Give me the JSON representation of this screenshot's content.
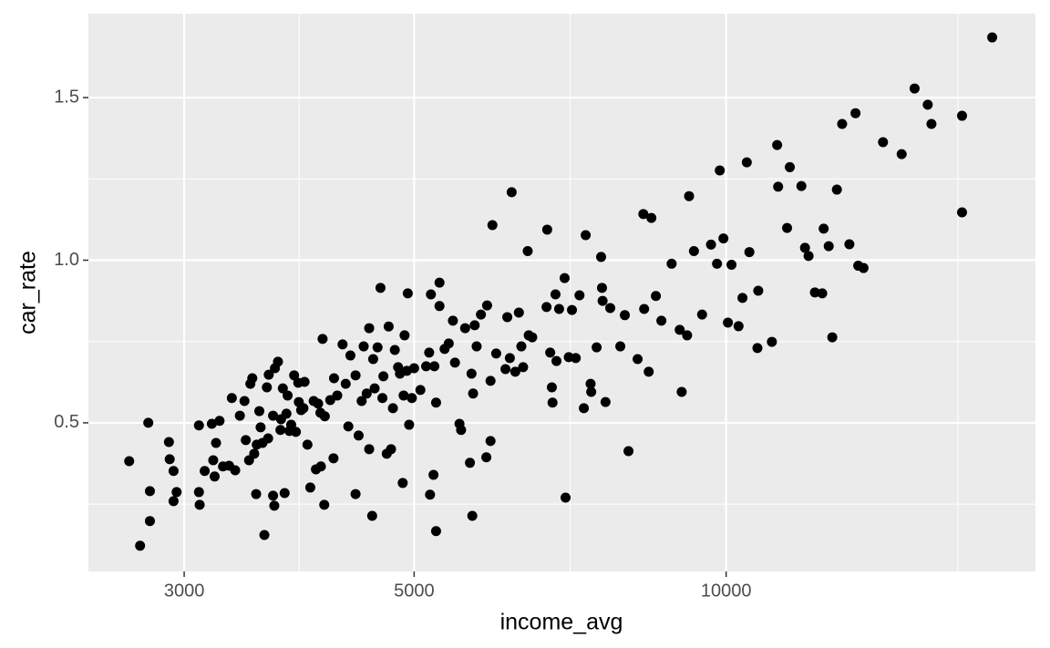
{
  "chart_data": {
    "type": "scatter",
    "x_label": "income_avg",
    "y_label": "car_rate",
    "x_log": true,
    "grid": true,
    "color": "#000000",
    "xlim": [
      2425,
      19880
    ],
    "xticks": [
      3000,
      5000,
      10000
    ],
    "xminor": [
      3873,
      7071,
      16733
    ],
    "ylim": [
      0.043,
      1.758
    ],
    "yticks": [
      0.5,
      {
        "value": 1,
        "label": "1.0"
      },
      1.5
    ],
    "yminor": [
      0.25,
      0.75,
      1.25
    ],
    "x": [
      2655,
      2720,
      2770,
      2780,
      2780,
      2900,
      2905,
      2930,
      2930,
      2950,
      3100,
      3100,
      3105,
      3140,
      3190,
      3200,
      3210,
      3220,
      3245,
      3270,
      3315,
      3335,
      3360,
      3395,
      3430,
      3440,
      3465,
      3475,
      3490,
      3505,
      3520,
      3525,
      3545,
      3555,
      3570,
      3585,
      3605,
      3615,
      3620,
      3655,
      3655,
      3665,
      3670,
      3695,
      3715,
      3720,
      3735,
      3750,
      3765,
      3775,
      3790,
      3805,
      3830,
      3845,
      3865,
      3870,
      3890,
      3910,
      3920,
      3945,
      3970,
      4000,
      4020,
      4040,
      4060,
      4065,
      4080,
      4095,
      4100,
      4150,
      4180,
      4185,
      4215,
      4265,
      4295,
      4320,
      4340,
      4390,
      4390,
      4420,
      4450,
      4470,
      4500,
      4525,
      4525,
      4555,
      4565,
      4580,
      4610,
      4640,
      4660,
      4670,
      4705,
      4725,
      4750,
      4770,
      4790,
      4825,
      4845,
      4875,
      4885,
      4895,
      4920,
      4930,
      4945,
      4975,
      5000,
      5070,
      5180,
      5220,
      5250,
      5135,
      5170,
      5190,
      5230,
      5250,
      5290,
      5290,
      5350,
      5400,
      5450,
      5475,
      5530,
      5550,
      5600,
      5660,
      5680,
      5690,
      5700,
      5720,
      5745,
      5800,
      5870,
      5880,
      5925,
      5925,
      5950,
      6000,
      6125,
      6150,
      6185,
      6210,
      6260,
      6310,
      6345,
      6370,
      6435,
      6450,
      6500,
      6710,
      6720,
      6765,
      6790,
      6800,
      6845,
      6860,
      6900,
      6985,
      7000,
      7050,
      7100,
      7160,
      7220,
      7290,
      7320,
      7400,
      7410,
      7500,
      7575,
      7590,
      7600,
      7650,
      7730,
      7905,
      7985,
      8050,
      8215,
      8320,
      8335,
      8420,
      8470,
      8555,
      8660,
      8860,
      9020,
      9060,
      9170,
      9210,
      9310,
      9480,
      9670,
      9800,
      9860,
      9940,
      10040,
      10120,
      10280,
      10370,
      10470,
      10530,
      10720,
      10740,
      11070,
      11200,
      11225,
      11450,
      11520,
      11820,
      11915,
      12010,
      12180,
      12380,
      12420,
      12560,
      12660,
      12790,
      12940,
      13150,
      13330,
      13410,
      13570,
      14170,
      14770,
      15200,
      15650,
      15780,
      16890,
      16890,
      18060
    ],
    "values": [
      0.382,
      0.122,
      0.5,
      0.29,
      0.198,
      0.441,
      0.388,
      0.352,
      0.259,
      0.287,
      0.492,
      0.287,
      0.248,
      0.352,
      0.497,
      0.385,
      0.335,
      0.438,
      0.506,
      0.366,
      0.368,
      0.576,
      0.354,
      0.522,
      0.567,
      0.447,
      0.385,
      0.62,
      0.637,
      0.405,
      0.281,
      0.433,
      0.536,
      0.486,
      0.438,
      0.155,
      0.609,
      0.452,
      0.648,
      0.522,
      0.276,
      0.245,
      0.668,
      0.688,
      0.478,
      0.511,
      0.606,
      0.284,
      0.528,
      0.584,
      0.475,
      0.494,
      0.646,
      0.472,
      0.623,
      0.564,
      0.539,
      0.545,
      0.626,
      0.433,
      0.301,
      0.567,
      0.357,
      0.559,
      0.531,
      0.366,
      0.758,
      0.248,
      0.52,
      0.57,
      0.391,
      0.637,
      0.584,
      0.741,
      0.62,
      0.489,
      0.707,
      0.281,
      0.646,
      0.461,
      0.567,
      0.735,
      0.59,
      0.419,
      0.791,
      0.214,
      0.696,
      0.606,
      0.732,
      0.915,
      0.576,
      0.643,
      0.405,
      0.796,
      0.419,
      0.545,
      0.724,
      0.671,
      0.651,
      0.315,
      0.584,
      0.769,
      0.66,
      0.898,
      0.494,
      0.576,
      0.668,
      0.601,
      0.279,
      0.34,
      0.167,
      0.674,
      0.716,
      0.895,
      0.674,
      0.562,
      0.931,
      0.859,
      0.727,
      0.744,
      0.814,
      0.685,
      0.497,
      0.478,
      0.791,
      0.377,
      0.651,
      0.214,
      0.59,
      0.8,
      0.735,
      0.833,
      0.394,
      0.861,
      0.444,
      0.629,
      1.108,
      0.713,
      0.665,
      0.825,
      0.699,
      1.209,
      0.657,
      0.839,
      0.735,
      0.671,
      1.028,
      0.769,
      0.763,
      0.856,
      1.094,
      0.716,
      0.609,
      0.562,
      0.895,
      0.69,
      0.85,
      0.945,
      0.27,
      0.702,
      0.847,
      0.699,
      0.892,
      0.545,
      1.077,
      0.62,
      0.595,
      0.732,
      1.01,
      0.915,
      0.875,
      0.564,
      0.853,
      0.735,
      0.831,
      0.413,
      0.696,
      1.142,
      0.85,
      0.657,
      1.13,
      0.89,
      0.814,
      0.989,
      0.786,
      0.595,
      0.769,
      1.197,
      1.028,
      0.833,
      1.048,
      0.989,
      1.276,
      1.067,
      0.808,
      0.986,
      0.797,
      0.884,
      1.301,
      1.025,
      0.73,
      0.906,
      0.749,
      1.354,
      1.226,
      1.099,
      1.286,
      1.228,
      1.038,
      1.013,
      0.901,
      0.898,
      1.097,
      1.043,
      0.763,
      1.217,
      1.419,
      1.049,
      1.452,
      0.983,
      0.976,
      1.363,
      1.326,
      1.528,
      1.478,
      1.419,
      1.444,
      1.147,
      1.685
    ]
  }
}
